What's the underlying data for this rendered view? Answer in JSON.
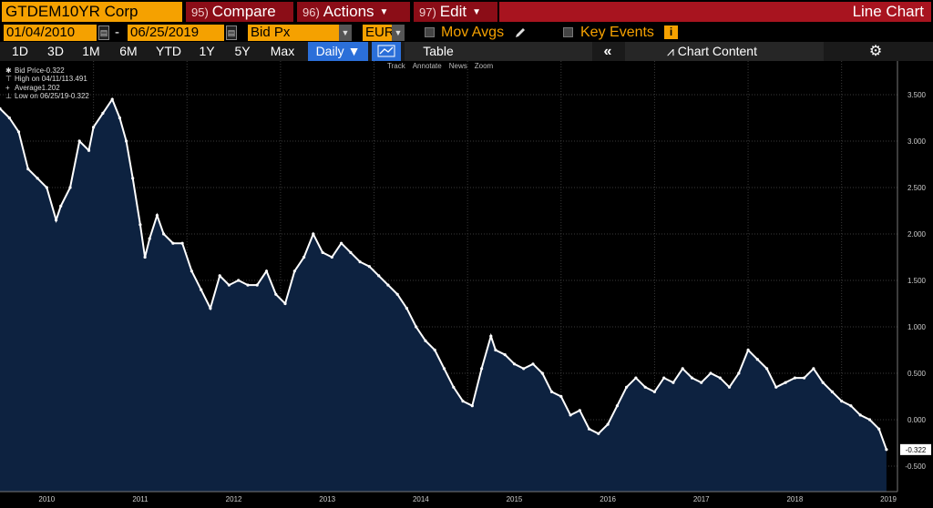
{
  "header": {
    "ticker": "GTDEM10YR Corp",
    "compare": {
      "num": "95)",
      "label": "Compare"
    },
    "actions": {
      "num": "96)",
      "label": "Actions"
    },
    "edit": {
      "num": "97)",
      "label": "Edit"
    },
    "chart_type": "Line Chart"
  },
  "controls": {
    "start_date": "01/04/2010",
    "date_sep": "-",
    "end_date": "06/25/2019",
    "field": "Bid Px",
    "currency": "EUR",
    "mov_avgs": "Mov Avgs",
    "key_events": "Key Events"
  },
  "ranges": [
    "1D",
    "3D",
    "1M",
    "6M",
    "YTD",
    "1Y",
    "5Y",
    "Max"
  ],
  "frequency": "Daily",
  "table_label": "Table",
  "chart_content_label": "Chart Content",
  "legend": [
    {
      "label": "Bid Price",
      "value": "-0.322"
    },
    {
      "label": "High on 04/11/11",
      "value": "3.491"
    },
    {
      "label": "Average",
      "value": "1.202"
    },
    {
      "label": "Low on 06/25/19",
      "value": "-0.322"
    }
  ],
  "chart_tools": [
    "Track",
    "Annotate",
    "News",
    "Zoom"
  ],
  "colors": {
    "accent_orange": "#f5a100",
    "header_red": "#a8141f",
    "area_fill": "#0d2240",
    "line": "#ffffff"
  },
  "chart_data": {
    "type": "area",
    "x_ticks": [
      "2010",
      "2011",
      "2012",
      "2013",
      "2014",
      "2015",
      "2016",
      "2017",
      "2018",
      "2019"
    ],
    "y_ticks": [
      "-0.500",
      "0.000",
      "0.500",
      "1.000",
      "1.500",
      "2.000",
      "2.500",
      "3.000",
      "3.500"
    ],
    "ylim": [
      -0.5,
      3.5
    ],
    "xlim": [
      2010.0,
      2019.5
    ],
    "last_value_label": "-0.322",
    "series": [
      {
        "x": [
          2010.0,
          2010.1,
          2010.2,
          2010.3,
          2010.4,
          2010.5,
          2010.6,
          2010.65,
          2010.75,
          2010.85,
          2010.95,
          2011.0,
          2011.1,
          2011.2,
          2011.28,
          2011.35,
          2011.42,
          2011.5,
          2011.55,
          2011.6,
          2011.68,
          2011.75,
          2011.85,
          2011.95,
          2012.05,
          2012.15,
          2012.25,
          2012.35,
          2012.45,
          2012.55,
          2012.65,
          2012.75,
          2012.85,
          2012.95,
          2013.05,
          2013.15,
          2013.25,
          2013.35,
          2013.45,
          2013.55,
          2013.65,
          2013.75,
          2013.85,
          2013.95,
          2014.05,
          2014.15,
          2014.25,
          2014.35,
          2014.45,
          2014.55,
          2014.65,
          2014.75,
          2014.85,
          2014.95,
          2015.05,
          2015.15,
          2015.25,
          2015.3,
          2015.4,
          2015.5,
          2015.6,
          2015.7,
          2015.8,
          2015.9,
          2016.0,
          2016.1,
          2016.2,
          2016.3,
          2016.4,
          2016.5,
          2016.6,
          2016.7,
          2016.8,
          2016.9,
          2017.0,
          2017.1,
          2017.2,
          2017.3,
          2017.4,
          2017.5,
          2017.6,
          2017.7,
          2017.8,
          2017.9,
          2018.0,
          2018.1,
          2018.2,
          2018.3,
          2018.4,
          2018.5,
          2018.6,
          2018.7,
          2018.8,
          2018.9,
          2019.0,
          2019.1,
          2019.2,
          2019.3,
          2019.4,
          2019.48
        ],
        "y": [
          3.35,
          3.25,
          3.1,
          2.7,
          2.6,
          2.5,
          2.15,
          2.3,
          2.5,
          3.0,
          2.9,
          3.15,
          3.3,
          3.45,
          3.25,
          3.0,
          2.6,
          2.1,
          1.75,
          1.95,
          2.2,
          2.0,
          1.9,
          1.9,
          1.6,
          1.4,
          1.2,
          1.55,
          1.45,
          1.5,
          1.45,
          1.45,
          1.6,
          1.35,
          1.25,
          1.6,
          1.75,
          2.0,
          1.8,
          1.75,
          1.9,
          1.8,
          1.7,
          1.65,
          1.55,
          1.45,
          1.35,
          1.2,
          1.0,
          0.85,
          0.75,
          0.55,
          0.35,
          0.2,
          0.15,
          0.55,
          0.9,
          0.75,
          0.7,
          0.6,
          0.55,
          0.6,
          0.5,
          0.3,
          0.25,
          0.05,
          0.1,
          -0.1,
          -0.15,
          -0.05,
          0.15,
          0.35,
          0.45,
          0.35,
          0.3,
          0.45,
          0.4,
          0.55,
          0.45,
          0.4,
          0.5,
          0.45,
          0.35,
          0.5,
          0.75,
          0.65,
          0.55,
          0.35,
          0.4,
          0.45,
          0.45,
          0.55,
          0.4,
          0.3,
          0.2,
          0.15,
          0.05,
          0.0,
          -0.1,
          -0.322
        ]
      }
    ]
  }
}
